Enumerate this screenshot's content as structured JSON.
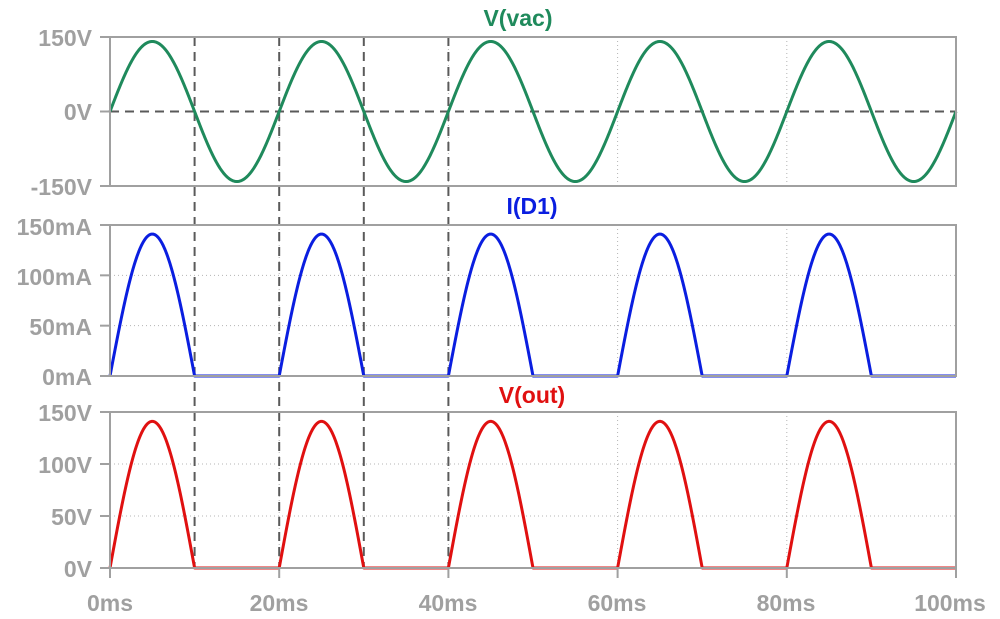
{
  "colors": {
    "vac": "#1f8a5c",
    "id1": "#0a1ee0",
    "vout": "#e01010",
    "axis": "#a0a0a0",
    "grid": "#b4b4b4",
    "cursor": "#5a5a5a"
  },
  "chart_data": [
    {
      "type": "line",
      "title": "V(vac)",
      "x_ticks": [
        "0ms",
        "20ms",
        "40ms",
        "60ms",
        "80ms",
        "100ms"
      ],
      "y_ticks": [
        "150V",
        "0V",
        "-150V"
      ],
      "xlim": [
        0,
        100
      ],
      "ylim": [
        -150,
        150
      ],
      "x_unit": "ms",
      "grid": true,
      "series": [
        {
          "name": "V(vac)",
          "waveform": "sine",
          "amplitude": 141,
          "frequency_hz": 50,
          "x": [
            0,
            5,
            10,
            15,
            20,
            25,
            30,
            35,
            40,
            45,
            50,
            55,
            60,
            65,
            70,
            75,
            80,
            85,
            90,
            95,
            100
          ],
          "values": [
            0,
            141,
            0,
            -141,
            0,
            141,
            0,
            -141,
            0,
            141,
            0,
            -141,
            0,
            141,
            0,
            -141,
            0,
            141,
            0,
            -141,
            0
          ]
        }
      ]
    },
    {
      "type": "line",
      "title": "I(D1)",
      "x_ticks": [
        "0ms",
        "20ms",
        "40ms",
        "60ms",
        "80ms",
        "100ms"
      ],
      "y_ticks": [
        "150mA",
        "100mA",
        "50mA",
        "0mA"
      ],
      "xlim": [
        0,
        100
      ],
      "ylim": [
        0,
        150
      ],
      "x_unit": "ms",
      "grid": true,
      "series": [
        {
          "name": "I(D1)",
          "waveform": "half-wave-rectified-sine",
          "amplitude": 141,
          "frequency_hz": 50,
          "x": [
            0,
            5,
            10,
            15,
            20,
            25,
            30,
            35,
            40,
            45,
            50,
            55,
            60,
            65,
            70,
            75,
            80,
            85,
            90,
            95,
            100
          ],
          "values": [
            0,
            141,
            0,
            0,
            0,
            141,
            0,
            0,
            0,
            141,
            0,
            0,
            0,
            141,
            0,
            0,
            0,
            141,
            0,
            0,
            0
          ]
        }
      ]
    },
    {
      "type": "line",
      "title": "V(out)",
      "x_ticks": [
        "0ms",
        "20ms",
        "40ms",
        "60ms",
        "80ms",
        "100ms"
      ],
      "y_ticks": [
        "150V",
        "100V",
        "50V",
        "0V"
      ],
      "xlim": [
        0,
        100
      ],
      "ylim": [
        0,
        150
      ],
      "x_unit": "ms",
      "grid": true,
      "series": [
        {
          "name": "V(out)",
          "waveform": "half-wave-rectified-sine",
          "amplitude": 141,
          "frequency_hz": 50,
          "x": [
            0,
            5,
            10,
            15,
            20,
            25,
            30,
            35,
            40,
            45,
            50,
            55,
            60,
            65,
            70,
            75,
            80,
            85,
            90,
            95,
            100
          ],
          "values": [
            0,
            141,
            0,
            0,
            0,
            141,
            0,
            0,
            0,
            141,
            0,
            0,
            0,
            141,
            0,
            0,
            0,
            141,
            0,
            0,
            0
          ]
        }
      ]
    }
  ],
  "cursors_ms": [
    10,
    20,
    30,
    40
  ]
}
